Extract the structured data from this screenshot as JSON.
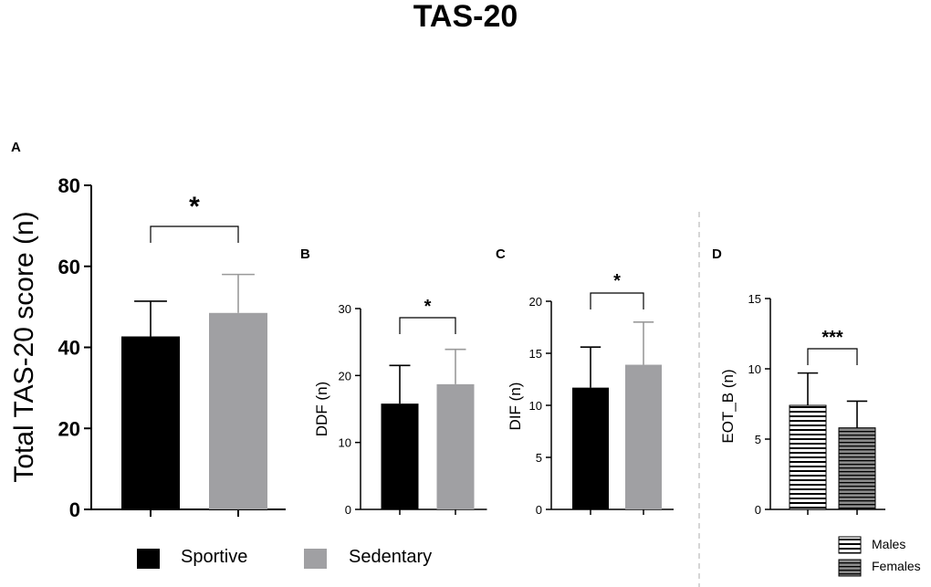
{
  "title": "TAS-20",
  "colors": {
    "sportive": "#000000",
    "sedentary": "#a0a0a3",
    "sedentary_err": "#9a9a9a",
    "divider": "#c8c8c8"
  },
  "chart_data": [
    {
      "panel": "A",
      "type": "bar",
      "categories": [
        "Sportive",
        "Sedentary"
      ],
      "values": [
        42.7,
        48.5
      ],
      "errors": [
        8.7,
        9.5
      ],
      "ylabel": "Total TAS-20 score (n)",
      "ylim": [
        0,
        80
      ],
      "yticks": [
        0,
        20,
        40,
        60,
        80
      ],
      "significance": "*",
      "bar_fill": [
        "sportive",
        "sedentary"
      ]
    },
    {
      "panel": "B",
      "type": "bar",
      "categories": [
        "Sportive",
        "Sedentary"
      ],
      "values": [
        15.8,
        18.7
      ],
      "errors": [
        5.7,
        5.2
      ],
      "ylabel": "DDF (n)",
      "ylim": [
        0,
        30
      ],
      "yticks": [
        0,
        10,
        20,
        30
      ],
      "significance": "*",
      "bar_fill": [
        "sportive",
        "sedentary"
      ]
    },
    {
      "panel": "C",
      "type": "bar",
      "categories": [
        "Sportive",
        "Sedentary"
      ],
      "values": [
        11.7,
        13.9
      ],
      "errors": [
        3.9,
        4.1
      ],
      "ylabel": "DIF (n)",
      "ylim": [
        0,
        20
      ],
      "yticks": [
        0,
        5,
        10,
        15,
        20
      ],
      "significance": "*",
      "bar_fill": [
        "sportive",
        "sedentary"
      ]
    },
    {
      "panel": "D",
      "type": "bar",
      "categories": [
        "Males",
        "Females"
      ],
      "values": [
        7.4,
        5.8
      ],
      "errors": [
        2.3,
        1.9
      ],
      "ylabel": "EOT_B (n)",
      "ylim": [
        0,
        15
      ],
      "yticks": [
        0,
        5,
        10,
        15
      ],
      "significance": "***",
      "bar_fill": [
        "males",
        "females"
      ]
    }
  ],
  "legend_abc": [
    {
      "label": "Sportive",
      "fill": "sportive"
    },
    {
      "label": "Sedentary",
      "fill": "sedentary"
    }
  ],
  "legend_d": [
    {
      "label": "Males",
      "fill": "males"
    },
    {
      "label": "Females",
      "fill": "females"
    }
  ]
}
